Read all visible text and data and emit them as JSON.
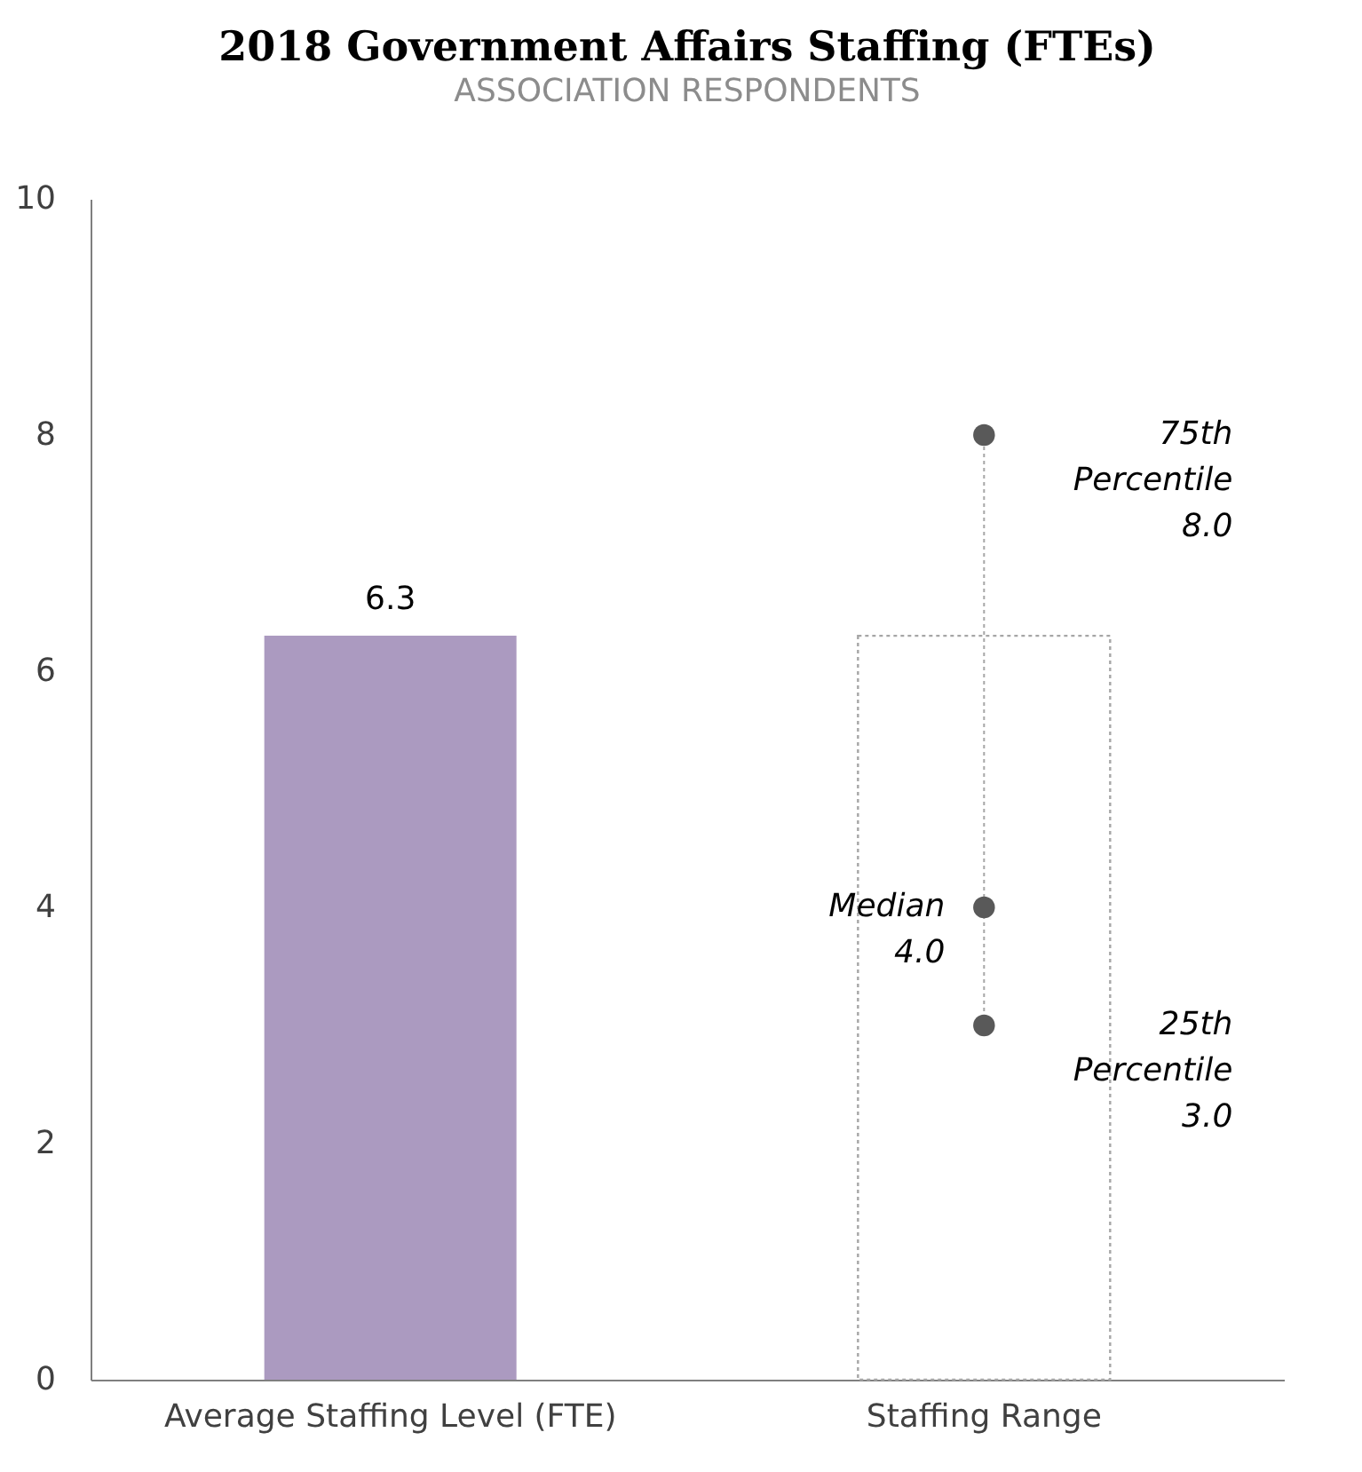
{
  "chart_data": {
    "type": "bar",
    "title": "2018 Government Affairs Staffing (FTEs)",
    "subtitle": "ASSOCIATION RESPONDENTS",
    "categories": [
      "Average Staffing Level (FTE)",
      "Staffing Range"
    ],
    "series": [
      {
        "color": "#ab9ac0",
        "values": [
          6.3,
          null
        ],
        "value_labels": [
          "6.3",
          null
        ]
      },
      {
        "color": "#a6a6a6",
        "line_style": "dotted",
        "values": [
          null,
          6.3
        ]
      },
      {
        "type": "line",
        "color": "#a6a6a6",
        "line_style": "dotted",
        "x": [
          "Staffing Range",
          "Staffing Range"
        ],
        "values": [
          3,
          8
        ]
      },
      {
        "type": "scatter",
        "color": "#595959",
        "marker": "circle",
        "x": [
          "Staffing Range",
          "Staffing Range",
          "Staffing Range"
        ],
        "values": [
          8,
          4,
          3
        ]
      }
    ],
    "annotations": [
      {
        "text": "75th Percentile 8.0",
        "x": "Staffing Range",
        "y": 8
      },
      {
        "text": "Median 4.0",
        "x": "Staffing Range",
        "y": 4
      },
      {
        "text": "25th Percentile 3.0",
        "x": "Staffing Range",
        "y": 3
      }
    ],
    "ylim": [
      0,
      10
    ],
    "yticks": [
      0,
      2,
      4,
      6,
      8,
      10
    ],
    "grid": false
  }
}
